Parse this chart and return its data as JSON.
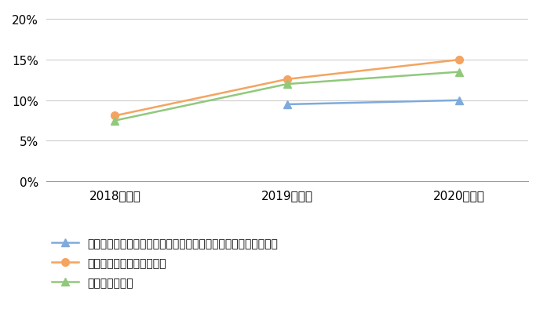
{
  "x_labels": [
    "2018年調査",
    "2019年調査",
    "2020年調査"
  ],
  "x_positions": [
    0,
    1,
    2
  ],
  "series": [
    {
      "label": "メンタルヘルスやがんの予防などの健康保持・増進に関する教育",
      "values": [
        null,
        9.5,
        10.0
      ],
      "color": "#7faadc",
      "marker": "^",
      "marker_size": 7
    },
    {
      "label": "コミュニケーションの促進",
      "values": [
        8.1,
        12.6,
        15.0
      ],
      "color": "#f4a460",
      "marker": "o",
      "marker_size": 7
    },
    {
      "label": "運動習慣の定着",
      "values": [
        7.5,
        12.0,
        13.5
      ],
      "color": "#90c97c",
      "marker": "^",
      "marker_size": 7
    }
  ],
  "ylim": [
    0,
    21
  ],
  "yticks": [
    0,
    5,
    10,
    15,
    20
  ],
  "ytick_labels": [
    "0%",
    "5%",
    "10%",
    "15%",
    "20%"
  ],
  "grid_color": "#cccccc",
  "background_color": "#ffffff",
  "legend_fontsize": 10,
  "tick_fontsize": 11,
  "figure_width": 6.88,
  "figure_height": 4.14,
  "dpi": 100
}
